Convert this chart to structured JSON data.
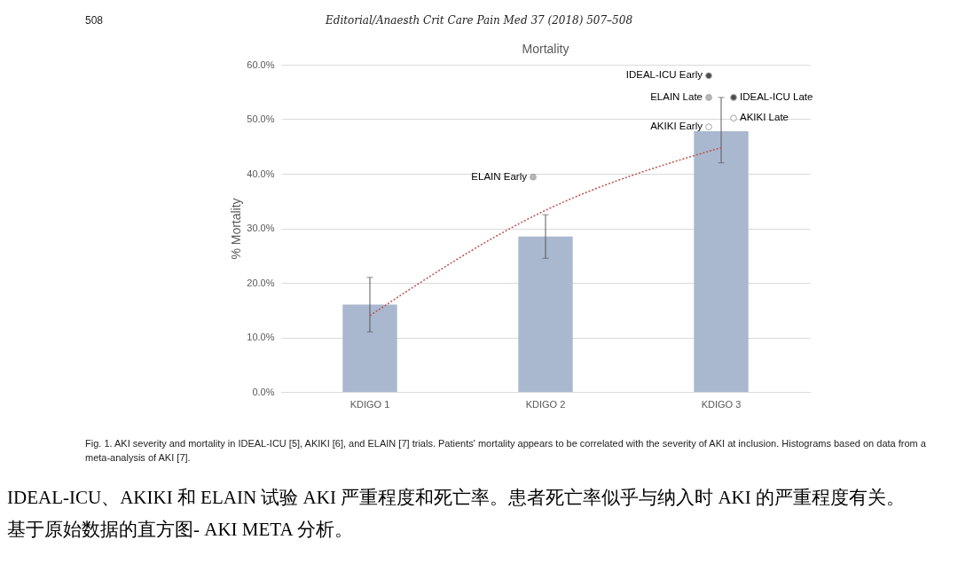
{
  "chart_data": {
    "type": "bar",
    "title": "Mortality",
    "ylabel": "% Mortality",
    "categories": [
      "KDIGO 1",
      "KDIGO 2",
      "KDIGO 3"
    ],
    "series": [
      {
        "color": "#a9b8cf",
        "values": [
          16,
          28.5,
          47.8
        ],
        "errors": [
          [
            11,
            21
          ],
          [
            24.5,
            32.5
          ],
          [
            42,
            54
          ]
        ]
      },
      {
        "type": "line",
        "color": "#c0504d",
        "values": [
          14,
          33.3,
          44.8
        ],
        "line_style": "dotted",
        "marker": "none"
      },
      {
        "type": "scatter",
        "name": "IDEAL-ICU Early",
        "marker": "circle",
        "color": "#000000",
        "x": [
          "KDIGO 3"
        ],
        "values": [
          58
        ]
      },
      {
        "type": "scatter",
        "name": "ELAIN Late",
        "marker": "circle",
        "color": "#999999",
        "x": [
          "KDIGO 3"
        ],
        "values": [
          54
        ]
      },
      {
        "type": "scatter",
        "name": "IDEAL-ICU Late",
        "marker": "circle",
        "color": "#000000",
        "x": [
          "KDIGO 3"
        ],
        "values": [
          54
        ]
      },
      {
        "type": "scatter",
        "name": "AKIKI Late",
        "marker": "circle",
        "color": "#ffffff",
        "x": [
          "KDIGO 3"
        ],
        "values": [
          50.2
        ]
      },
      {
        "type": "scatter",
        "name": "AKIKI Early",
        "marker": "circle",
        "color": "#ffffff",
        "x": [
          "KDIGO 3"
        ],
        "values": [
          48.6
        ]
      },
      {
        "type": "scatter",
        "name": "ELAIN Early",
        "marker": "circle",
        "color": "#999999",
        "x": [
          "KDIGO 2"
        ],
        "values": [
          39.4
        ]
      }
    ],
    "ylim": [
      0,
      60
    ],
    "yticks": [
      {
        "value": 0,
        "label": "0.0%"
      },
      {
        "value": 10,
        "label": "10.0%"
      },
      {
        "value": 20,
        "label": "20.0%"
      },
      {
        "value": 30,
        "label": "30.0%"
      },
      {
        "value": 40,
        "label": "40.0%"
      },
      {
        "value": 50,
        "label": "50.0%"
      },
      {
        "value": 60,
        "label": "60.0%"
      }
    ],
    "grid": "y",
    "annotations": [
      "508",
      "Editorial/Anaesth Crit Care Pain Med 37 (2018) 507–508",
      "Fig. 1. AKI severity and mortality in IDEAL-ICU [5], AKIKI [6], and ELAIN [7] trials. Patients' mortality appears to be correlated with the severity of AKI at inclusion. Histograms based on data from a meta-analysis of AKI [7].",
      "IDEAL-ICU、AKIKI 和 ELAIN 试验 AKI 严重程度和死亡率。患者死亡率似乎与纳入时 AKI 的严重程度有关。基于原始数据的直方图- AKI META 分析。"
    ]
  }
}
